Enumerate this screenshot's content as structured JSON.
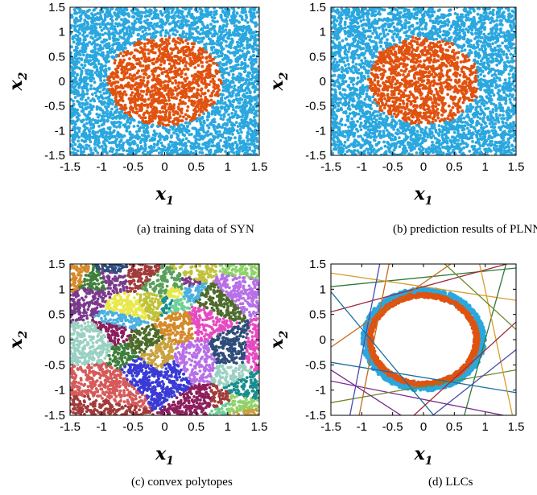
{
  "colors": {
    "class_blue": "#2aa7df",
    "class_orange": "#e0520f",
    "axis": "#000000",
    "polytope_palette": [
      "#a33b3b",
      "#7a3a8c",
      "#3f7f3c",
      "#c0c23a",
      "#e64ac0",
      "#8fd36a",
      "#1a8e8e",
      "#d58a2a",
      "#3a3ad6",
      "#6fcf9a",
      "#c9a23e",
      "#8c1f5c",
      "#4d6b2a",
      "#e8e84a",
      "#49b0e0",
      "#b870e8",
      "#2f4c7a",
      "#9ad1c2",
      "#d65a5a",
      "#5aa05a"
    ],
    "llc_lines": [
      "#2f7a3a",
      "#d99b2a",
      "#7a2a8c",
      "#1a6fa0",
      "#9c2a3a",
      "#6a8a2a",
      "#c46a1a",
      "#4a4ab0"
    ]
  },
  "chart_data": [
    {
      "type": "scatter",
      "panel": "a",
      "caption": "(a)  training data of SYN",
      "xlabel_base": "x",
      "xlabel_sub": "1",
      "ylabel_base": "x",
      "ylabel_sub": "2",
      "xlim": [
        -1.5,
        1.5
      ],
      "ylim": [
        -1.5,
        1.5
      ],
      "xticks": [
        "-1.5",
        "-1",
        "-0.5",
        "0",
        "0.5",
        "1",
        "1.5"
      ],
      "yticks": [
        "1.5",
        "1",
        "0.5",
        "0",
        "-0.5",
        "-1",
        "-1.5"
      ],
      "series": [
        {
          "points": "uniform in square [-1.5,1.5]^2, outside circle r=0.9"
        },
        {
          "points": "uniform inside circle of radius 0.9 centered at (0,0)"
        }
      ],
      "grid": false
    },
    {
      "type": "scatter",
      "panel": "b",
      "caption": "(b)  prediction results of PLNN",
      "xlabel_base": "x",
      "xlabel_sub": "1",
      "ylabel_base": "x",
      "ylabel_sub": "2",
      "xlim": [
        -1.5,
        1.5
      ],
      "ylim": [
        -1.5,
        1.5
      ],
      "xticks": [
        "-1.5",
        "-1",
        "-0.5",
        "0",
        "0.5",
        "1",
        "1.5"
      ],
      "yticks": [
        "1.5",
        "1",
        "0.5",
        "0",
        "-0.5",
        "-1",
        "-1.5"
      ],
      "series": [
        {
          "points": "uniform in square [-1.5,1.5]^2, outside predicted region"
        },
        {
          "points": "inside polygonal approximation of circle r=0.9"
        }
      ],
      "grid": false
    },
    {
      "type": "scatter",
      "panel": "c",
      "caption": "(c)  convex polytopes",
      "xlabel_base": "x",
      "xlabel_sub": "1",
      "ylabel_base": "x",
      "ylabel_sub": "2",
      "xlim": [
        -1.5,
        1.5
      ],
      "ylim": [
        -1.5,
        1.5
      ],
      "xticks": [
        "-1.5",
        "-1",
        "-0.5",
        "0",
        "0.5",
        "1",
        "1.5"
      ],
      "yticks": [
        "1.5",
        "1",
        "0.5",
        "0",
        "-0.5",
        "-1",
        "-1.5"
      ],
      "series": [
        {
          "points": "uniform in square, colored by convex polytope region (about 40 regions)"
        }
      ],
      "grid": false
    },
    {
      "type": "line",
      "panel": "d",
      "caption": "(d)  LLCs",
      "xlabel_base": "x",
      "xlabel_sub": "1",
      "ylabel_base": "x",
      "ylabel_sub": "2",
      "xlim": [
        -1.5,
        1.5
      ],
      "ylim": [
        -1.5,
        1.5
      ],
      "xticks": [
        "-1.5",
        "-1",
        "-0.5",
        "0",
        "0.5",
        "1",
        "1.5"
      ],
      "yticks": [
        "1.5",
        "1",
        "0.5",
        "0",
        "-0.5",
        "-1",
        "-1.5"
      ],
      "lines": [
        {
          "x": [
            -1.5,
            1.5
          ],
          "y": [
            1.05,
            1.42
          ]
        },
        {
          "x": [
            -1.5,
            1.5
          ],
          "y": [
            1.32,
            0.78
          ]
        },
        {
          "x": [
            -1.5,
            1.5
          ],
          "y": [
            -0.82,
            -1.55
          ]
        },
        {
          "x": [
            -1.5,
            1.5
          ],
          "y": [
            -0.45,
            -1.05
          ]
        },
        {
          "x": [
            -1.5,
            1.5
          ],
          "y": [
            0.55,
            1.55
          ]
        },
        {
          "x": [
            -1.5,
            1.5
          ],
          "y": [
            -1.25,
            -0.6
          ]
        },
        {
          "x": [
            -1.05,
            -0.55
          ],
          "y": [
            -1.55,
            1.55
          ]
        },
        {
          "x": [
            -1.2,
            -0.7
          ],
          "y": [
            -1.55,
            1.55
          ]
        },
        {
          "x": [
            0.65,
            1.35
          ],
          "y": [
            -1.55,
            1.55
          ]
        },
        {
          "x": [
            0.9,
            1.45
          ],
          "y": [
            1.55,
            -1.55
          ]
        },
        {
          "x": [
            -1.5,
            -0.3
          ],
          "y": [
            -0.6,
            -1.55
          ]
        },
        {
          "x": [
            -1.5,
            0.2
          ],
          "y": [
            0.95,
            -1.55
          ]
        },
        {
          "x": [
            -0.2,
            1.5
          ],
          "y": [
            -1.55,
            0.35
          ]
        },
        {
          "x": [
            0.3,
            1.5
          ],
          "y": [
            1.55,
            0.2
          ]
        },
        {
          "x": [
            -1.5,
            0.5
          ],
          "y": [
            -0.15,
            1.55
          ]
        },
        {
          "x": [
            0.1,
            1.5
          ],
          "y": [
            -1.55,
            -0.2
          ]
        }
      ],
      "boundary_rings": "blue outer ring and orange inner ring along a polygon of radius about 0.95",
      "grid": false
    }
  ]
}
